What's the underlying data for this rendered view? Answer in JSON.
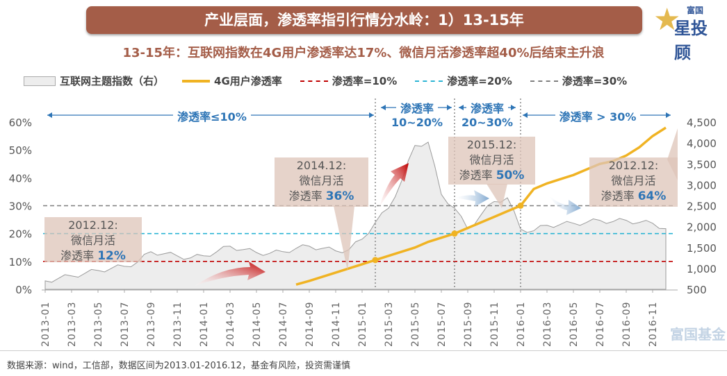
{
  "header": {
    "title": "产业层面，渗透率指引行情分水岭：1）13-15年",
    "subtitle": "13-15年：互联网指数在4G用户渗透率达17%、微信月活渗透率超40%后结束主升浪",
    "logo_small": "富国",
    "logo_big": "星投顾"
  },
  "watermark": "富国基金",
  "footer": "数据来源：wind，工信部，数据区间为2013.01-2016.12，基金有风险，投资需谨慎",
  "colors": {
    "title_bg": "#a45d48",
    "accent_blue": "#2e75b6",
    "line_4g": "#f0b323",
    "ref10": "#c00000",
    "ref20": "#2bb4d4",
    "ref30": "#7f7f7f",
    "area": "#ededed"
  },
  "chart_data": {
    "type": "line",
    "legend": [
      "互联网主题指数（右）",
      "4G用户渗透率",
      "渗透率=10%",
      "渗透率=20%",
      "渗透率=30%"
    ],
    "legend_placement": "top",
    "x": [
      "2013-01",
      "2013-02",
      "2013-03",
      "2013-04",
      "2013-05",
      "2013-06",
      "2013-07",
      "2013-08",
      "2013-09",
      "2013-10",
      "2013-11",
      "2013-12",
      "2014-01",
      "2014-02",
      "2014-03",
      "2014-04",
      "2014-05",
      "2014-06",
      "2014-07",
      "2014-08",
      "2014-09",
      "2014-10",
      "2014-11",
      "2014-12",
      "2015-01",
      "2015-02",
      "2015-03",
      "2015-04",
      "2015-05",
      "2015-06",
      "2015-07",
      "2015-08",
      "2015-09",
      "2015-10",
      "2015-11",
      "2015-12",
      "2016-01",
      "2016-02",
      "2016-03",
      "2016-04",
      "2016-05",
      "2016-06",
      "2016-07",
      "2016-08",
      "2016-09",
      "2016-10",
      "2016-11",
      "2016-12"
    ],
    "x_tick_labels": [
      "2013-01",
      "2013-03",
      "2013-05",
      "2013-07",
      "2013-09",
      "2013-11",
      "2014-01",
      "2014-03",
      "2014-05",
      "2014-07",
      "2014-09",
      "2014-11",
      "2015-01",
      "2015-03",
      "2015-05",
      "2015-07",
      "2015-09",
      "2015-11",
      "2016-01",
      "2016-03",
      "2016-05",
      "2016-07",
      "2016-09",
      "2016-11"
    ],
    "series": [
      {
        "name": "互联网主题指数（右）",
        "type": "area",
        "axis": "right",
        "values": [
          700,
          760,
          820,
          880,
          950,
          1000,
          1050,
          1150,
          1400,
          1350,
          1300,
          1250,
          1300,
          1400,
          1530,
          1450,
          1380,
          1360,
          1400,
          1480,
          1530,
          1480,
          1420,
          1450,
          1700,
          2100,
          2440,
          3100,
          3940,
          4020,
          2770,
          2440,
          1940,
          2280,
          2600,
          2690,
          1940,
          1900,
          2030,
          2050,
          2080,
          2100,
          2150,
          2120,
          2150,
          2100,
          2080,
          1950
        ]
      },
      {
        "name": "4G用户渗透率",
        "type": "line",
        "axis": "left",
        "unit": "%",
        "values": [
          null,
          null,
          null,
          null,
          null,
          null,
          null,
          null,
          null,
          null,
          null,
          null,
          null,
          null,
          null,
          null,
          null,
          null,
          null,
          1.7,
          3,
          4.5,
          6,
          7.5,
          9,
          10.5,
          12,
          13.5,
          15,
          17,
          18.5,
          20,
          22,
          24,
          26,
          28,
          30,
          36,
          38,
          39.5,
          41,
          43,
          45,
          46,
          48,
          51,
          55,
          58
        ]
      }
    ],
    "reference_lines": [
      {
        "name": "渗透率=10%",
        "value": 10
      },
      {
        "name": "渗透率=20%",
        "value": 20
      },
      {
        "name": "渗透率=30%",
        "value": 30
      }
    ],
    "phase_dividers": [
      "2015-02",
      "2015-08",
      "2016-01"
    ],
    "regions": [
      {
        "label": "渗透率≤10%",
        "line2": ""
      },
      {
        "label": "渗透率",
        "line2": "10~20%"
      },
      {
        "label": "渗透率",
        "line2": "20~30%"
      },
      {
        "label": "渗透率 > 30%",
        "line2": ""
      }
    ],
    "annotations": [
      {
        "date": "2012.12:",
        "line1": "微信月活",
        "prefix": "渗透率",
        "value": "12%"
      },
      {
        "date": "2014.12:",
        "line1": "微信月活",
        "prefix": "渗透率",
        "value": "36%"
      },
      {
        "date": "2015.12:",
        "line1": "微信月活",
        "prefix": "渗透率",
        "value": "50%"
      },
      {
        "date": "2012.12:",
        "line1": "微信月活",
        "prefix": "渗透率",
        "value": "64%"
      }
    ],
    "y_left": {
      "ticks": [
        "0%",
        "10%",
        "20%",
        "30%",
        "40%",
        "50%",
        "60%"
      ],
      "range": [
        0,
        60
      ]
    },
    "y_right": {
      "ticks": [
        "500",
        "1,000",
        "1,500",
        "2,000",
        "2,500",
        "3,000",
        "3,500",
        "4,000",
        "4,500"
      ],
      "range": [
        500,
        4500
      ]
    }
  }
}
